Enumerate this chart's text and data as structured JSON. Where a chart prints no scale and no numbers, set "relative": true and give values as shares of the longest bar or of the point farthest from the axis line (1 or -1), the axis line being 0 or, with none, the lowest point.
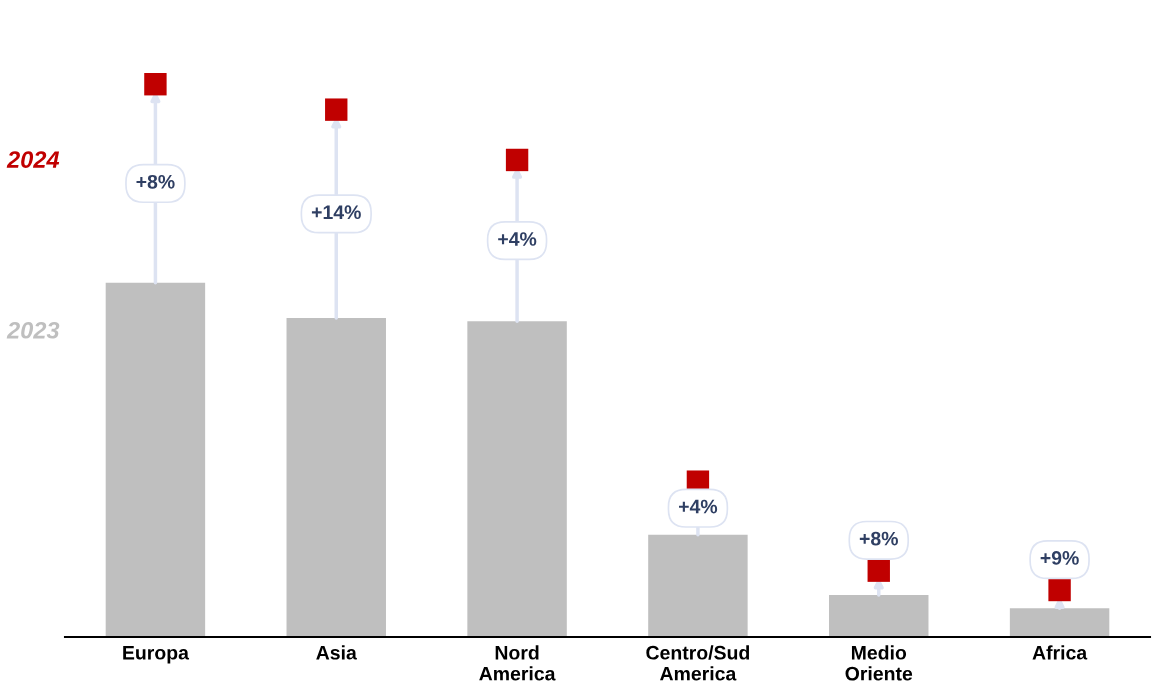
{
  "chart_data": {
    "type": "bar",
    "relative": true,
    "categories": [
      "Europa",
      "Asia",
      "Nord\nAmerica",
      "Centro/Sud\nAmerica",
      "Medio\nOriente",
      "Africa"
    ],
    "series": [
      {
        "name": "2023",
        "type": "bar",
        "color": "#bfbfbf",
        "values": [
          0.641,
          0.577,
          0.571,
          0.185,
          0.076,
          0.052
        ]
      },
      {
        "name": "2024",
        "type": "scatter",
        "color": "#c00000",
        "values": [
          1.0,
          0.954,
          0.863,
          0.281,
          0.12,
          0.085
        ]
      }
    ],
    "annotations": [
      "+8%",
      "+14%",
      "+4%",
      "+4%",
      "+8%",
      "+9%"
    ],
    "grid": false,
    "legend": false
  }
}
